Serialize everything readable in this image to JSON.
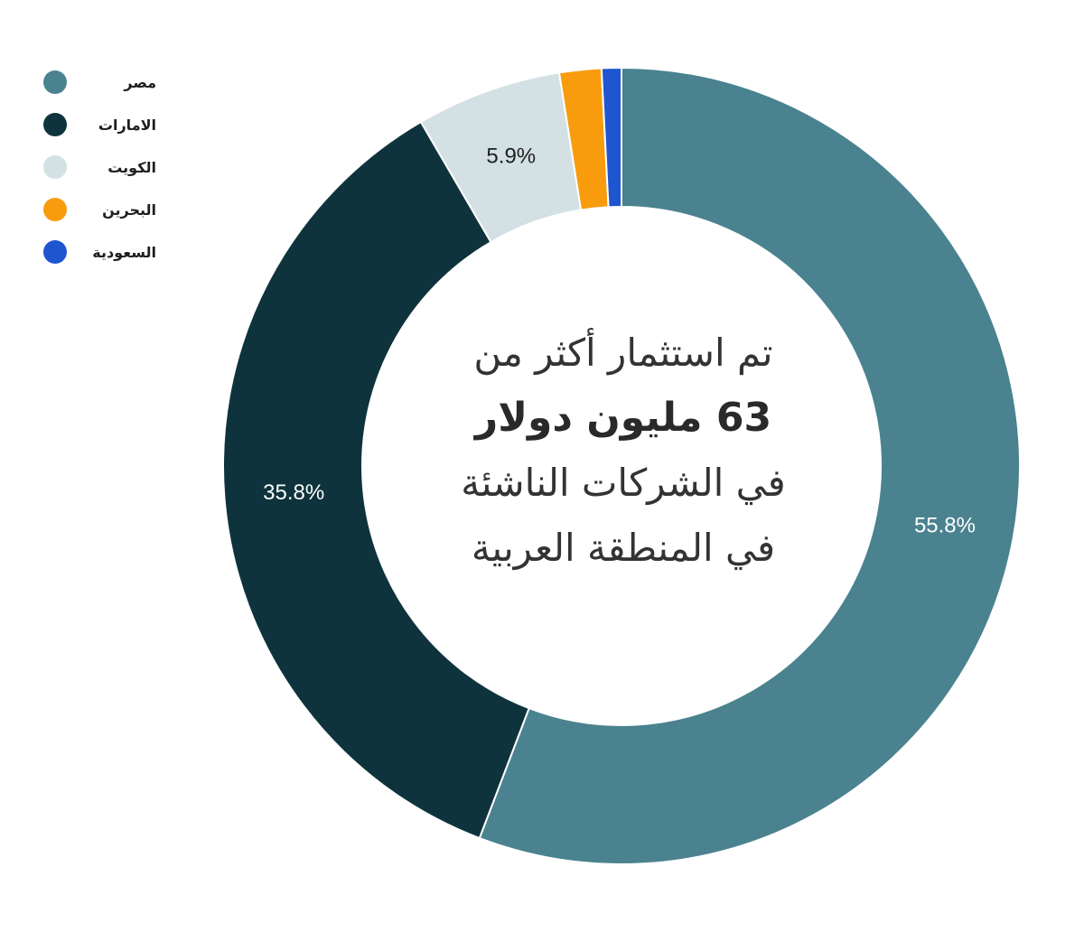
{
  "chart_data": {
    "type": "pie",
    "donut": true,
    "categories": [
      "مصر",
      "الامارات",
      "الكويت",
      "البحرين",
      "السعودية"
    ],
    "values": [
      55.8,
      35.8,
      5.9,
      1.7,
      0.8
    ],
    "colors": [
      "#4a828f",
      "#0e333c",
      "#d3e1e4",
      "#f89c0e",
      "#1f55cf"
    ],
    "data_labels": [
      "55.8%",
      "35.8%",
      "5.9%",
      "",
      ""
    ],
    "label_colors": [
      "#ffffff",
      "#ffffff",
      "#1f1f1f",
      "#1f1f1f",
      "#1f1f1f"
    ],
    "legend_position": "top-left",
    "start_angle": "12 o'clock, clockwise"
  },
  "center_text": {
    "line1": "تم استثمار أكثر من",
    "line2": "63 مليون دولار",
    "line3": "في الشركات الناشئة",
    "line4": "في المنطقة العربية"
  }
}
